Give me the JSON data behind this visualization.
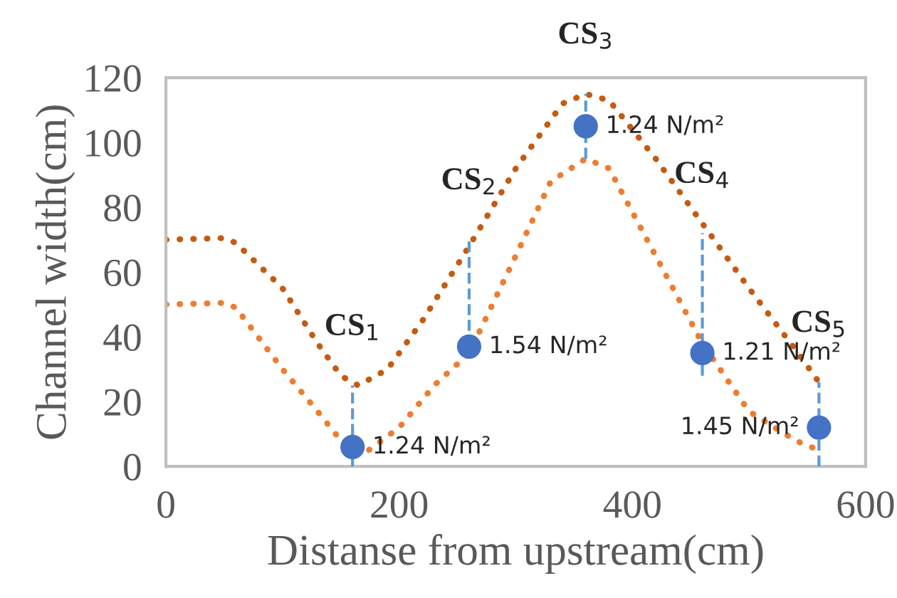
{
  "chart_data": {
    "type": "line",
    "xlabel": "Distanse from upstream(cm)",
    "ylabel": "Channel width(cm)",
    "xlim": [
      0,
      600
    ],
    "xticks": [
      0,
      200,
      400,
      600
    ],
    "ylim": [
      0,
      120
    ],
    "yticks": [
      0,
      20,
      40,
      60,
      80,
      100,
      120
    ],
    "grid": false,
    "legend": false,
    "line_style": "dotted",
    "series": [
      {
        "color": "#c55a11",
        "x": [
          0,
          50,
          60,
          100,
          130,
          150,
          165,
          190,
          220,
          260,
          300,
          340,
          360,
          380,
          420,
          460,
          500,
          540,
          560
        ],
        "values": [
          70,
          70.5,
          69,
          55,
          38,
          28,
          25,
          30,
          45,
          68,
          92,
          112,
          115,
          113,
          95,
          75,
          55,
          36,
          26
        ]
      },
      {
        "color": "#ed7d31",
        "x": [
          0,
          50,
          60,
          100,
          130,
          150,
          170,
          200,
          230,
          260,
          300,
          330,
          360,
          380,
          420,
          460,
          500,
          540,
          560
        ],
        "values": [
          50,
          50.5,
          49,
          30,
          17,
          8,
          4,
          12,
          25,
          35,
          65,
          88,
          95,
          92,
          65,
          38,
          17,
          8,
          5
        ]
      },
      {
        "type": "scatter",
        "color": "#4472c4",
        "marker": "circle",
        "x": [
          160,
          260,
          360,
          460,
          560
        ],
        "values": [
          6,
          37,
          105,
          35,
          12
        ],
        "errors": [
          [
            0,
            25
          ],
          [
            37,
            70
          ],
          [
            95,
            115
          ],
          [
            28,
            72
          ],
          [
            0,
            26
          ]
        ]
      }
    ],
    "annotations": [
      {
        "text": "CS$_{1}$",
        "x": 160,
        "y": 25
      },
      {
        "text": "CS$_{2}$",
        "x": 260,
        "y": 70
      },
      {
        "text": "CS$_{3}$",
        "x": 360,
        "y": 115
      },
      {
        "text": "CS$_{4}$",
        "x": 460,
        "y": 72
      },
      {
        "text": "CS$_{5}$",
        "x": 560,
        "y": 26
      },
      {
        "text": "1.24 N/m²",
        "x": 160,
        "y": 6
      },
      {
        "text": "1.54 N/m²",
        "x": 260,
        "y": 37
      },
      {
        "text": "1.24 N/m²",
        "x": 360,
        "y": 105
      },
      {
        "text": "1.21 N/m²",
        "x": 460,
        "y": 35
      },
      {
        "text": "1.45 N/m²",
        "x": 560,
        "y": 12
      }
    ]
  }
}
